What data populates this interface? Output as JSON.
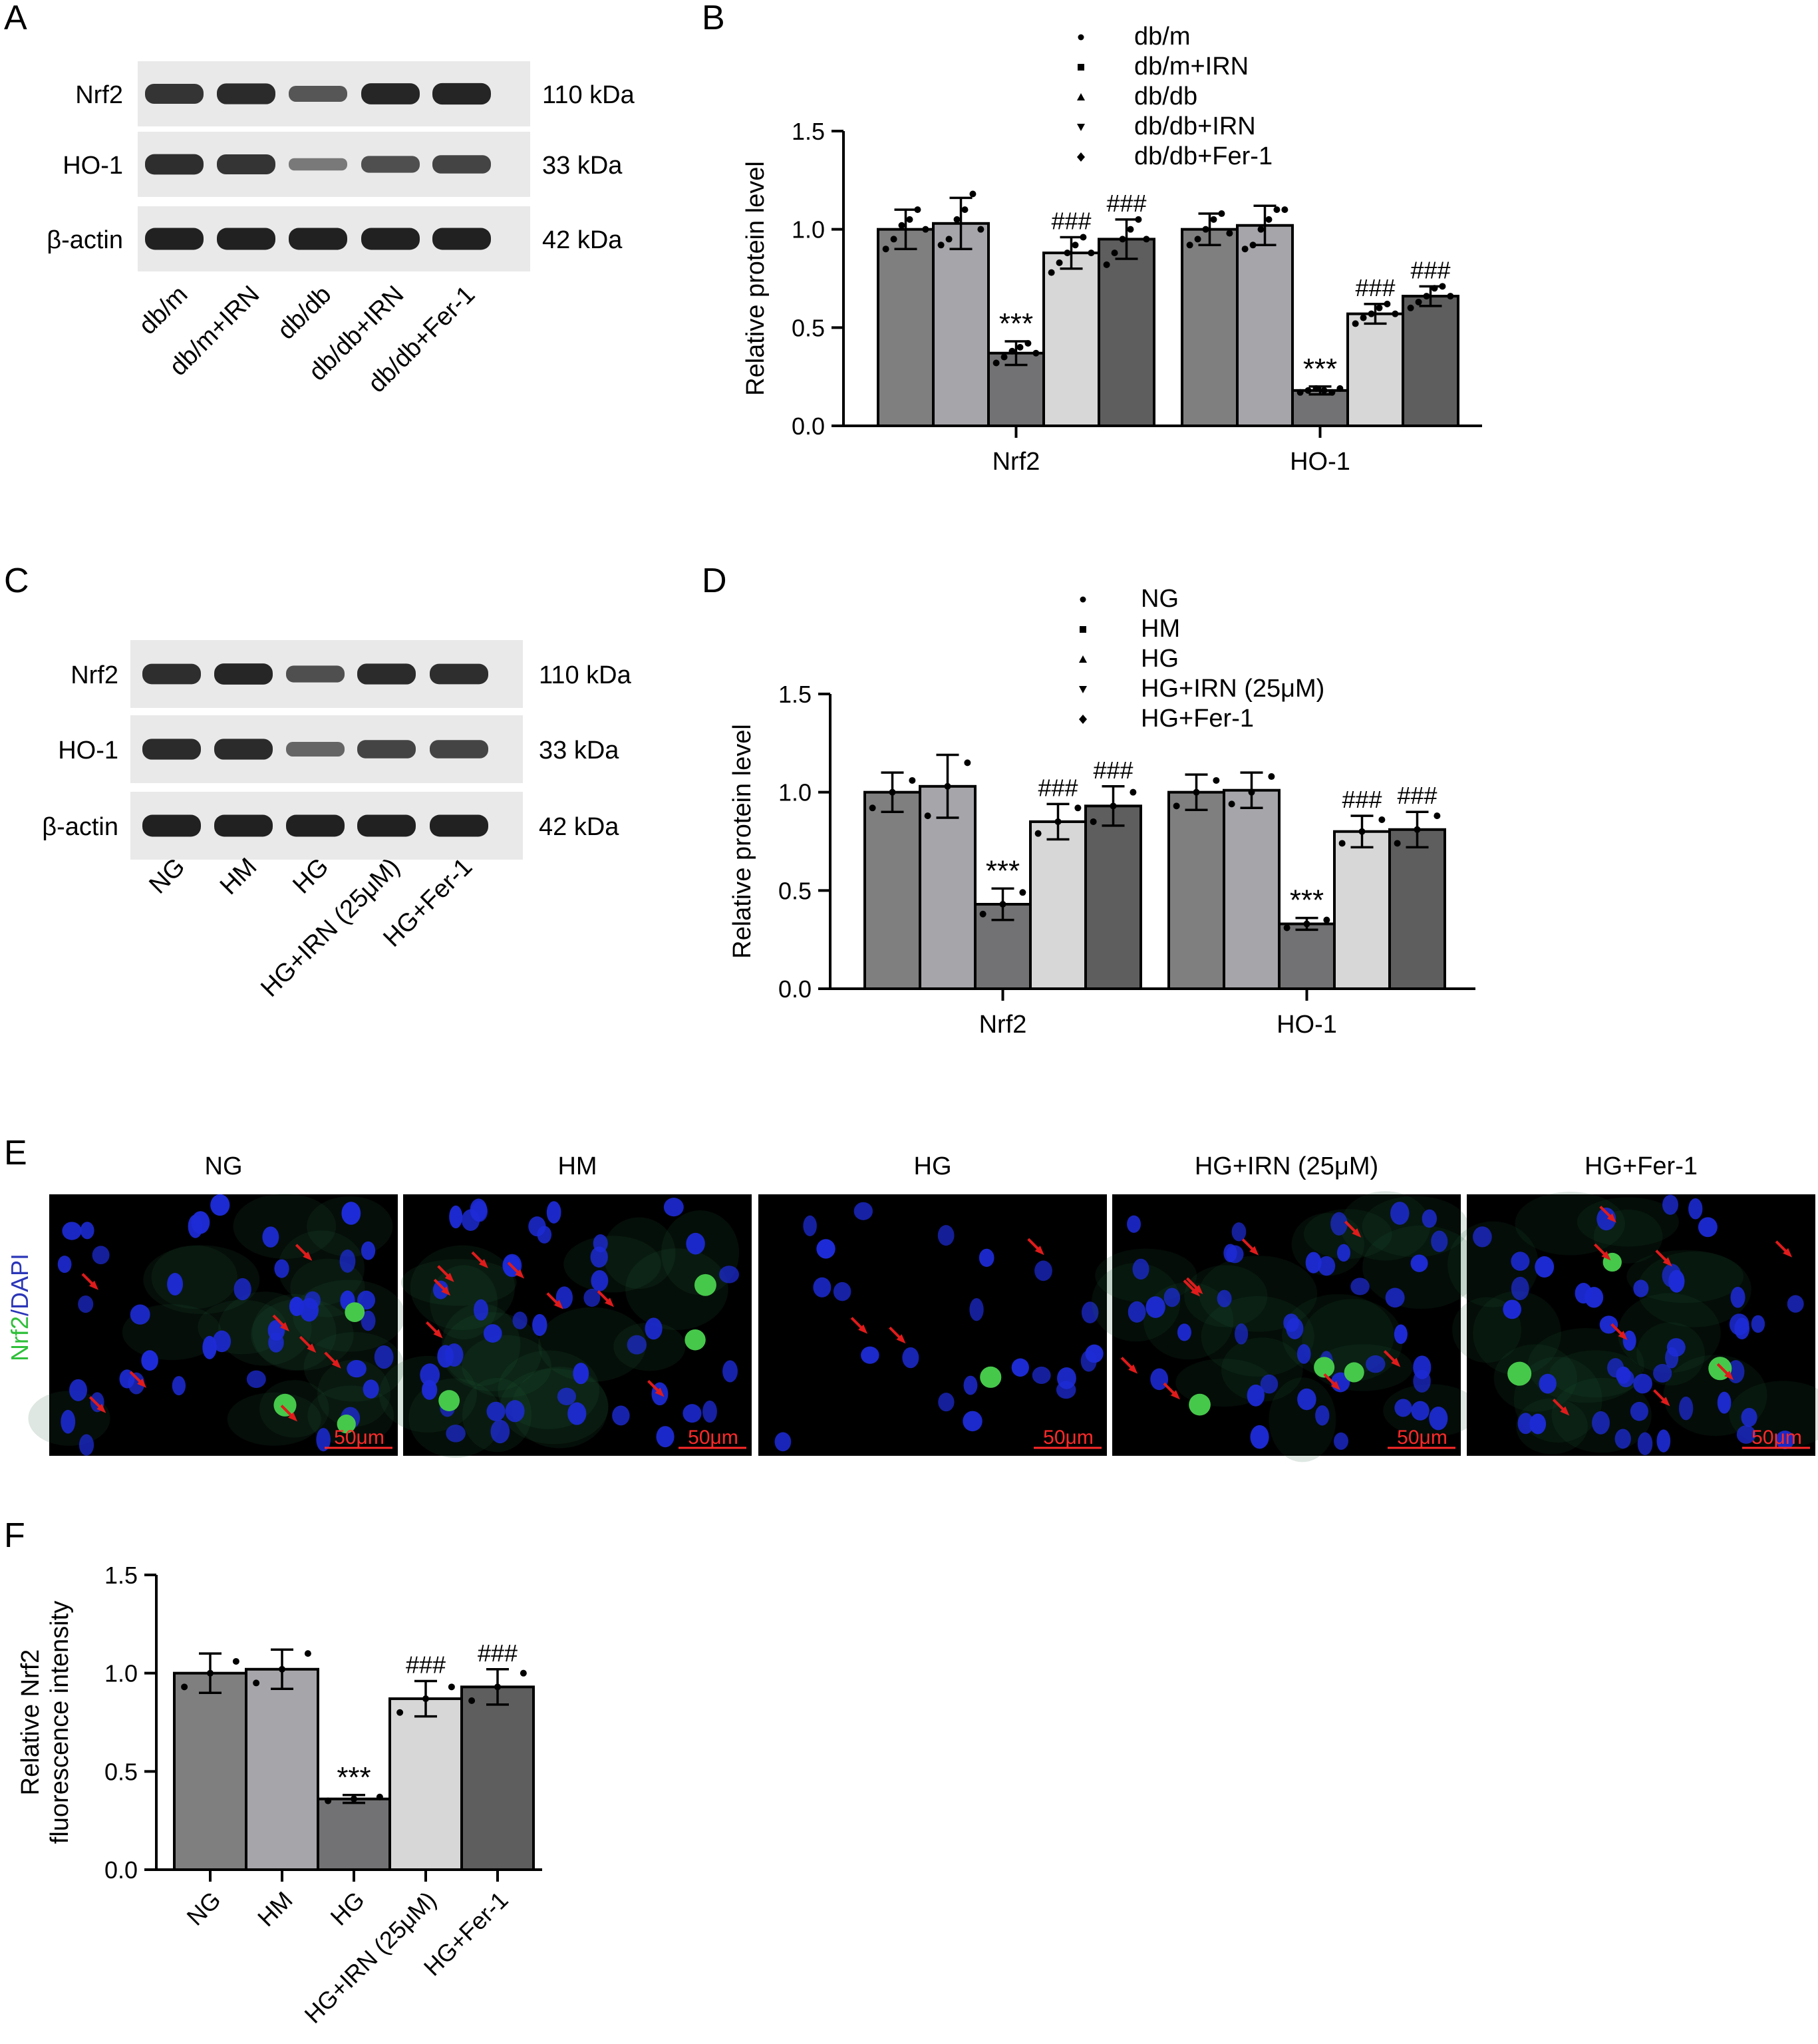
{
  "figure": {
    "colors": {
      "bar_series": [
        "#7f7f80",
        "#a5a5aa",
        "#727274",
        "#d7d7d7",
        "#5e5e5e"
      ],
      "blot_band": "#1a1a1a",
      "blot_bg": "#e9e9e9",
      "if_nucleus": "#1d2bd6",
      "if_green": "#46c84b",
      "if_arrow": "#e01b1b",
      "scale_bar": "#ff2a2a"
    },
    "panels": {
      "A": {
        "label": "A",
        "rows": [
          {
            "protein": "Nrf2",
            "size": "110 kDa",
            "intensity": [
              0.82,
              0.88,
              0.55,
              0.9,
              0.92
            ]
          },
          {
            "protein": "HO-1",
            "size": "33 kDa",
            "intensity": [
              0.85,
              0.82,
              0.3,
              0.6,
              0.7
            ]
          },
          {
            "protein": "β-actin",
            "size": "42 kDa",
            "intensity": [
              0.95,
              0.95,
              0.95,
              0.95,
              0.95
            ]
          }
        ],
        "lanes": [
          "db/m",
          "db/m+IRN",
          "db/db",
          "db/db+IRN",
          "db/db+Fer-1"
        ]
      },
      "C": {
        "label": "C",
        "rows": [
          {
            "protein": "Nrf2",
            "size": "110 kDa",
            "intensity": [
              0.85,
              0.9,
              0.6,
              0.88,
              0.85
            ]
          },
          {
            "protein": "HO-1",
            "size": "33 kDa",
            "intensity": [
              0.88,
              0.88,
              0.45,
              0.7,
              0.7
            ]
          },
          {
            "protein": "β-actin",
            "size": "42 kDa",
            "intensity": [
              0.95,
              0.95,
              0.95,
              0.95,
              0.95
            ]
          }
        ],
        "lanes": [
          "NG",
          "HM",
          "HG",
          "HG+IRN (25μM)",
          "HG+Fer-1"
        ]
      },
      "E": {
        "label": "E",
        "y_label": [
          "Nrf2",
          "/DAPI"
        ],
        "scale_text": "50μm",
        "images": [
          {
            "title": "NG",
            "green": 0.6,
            "nuclei": 40
          },
          {
            "title": "HM",
            "green": 0.65,
            "nuclei": 42
          },
          {
            "title": "HG",
            "green": 0.1,
            "nuclei": 22
          },
          {
            "title": "HG+IRN (25μM)",
            "green": 0.55,
            "nuclei": 40
          },
          {
            "title": "HG+Fer-1",
            "green": 0.55,
            "nuclei": 42
          }
        ]
      }
    }
  },
  "chart_data": [
    {
      "panel": "B",
      "type": "bar",
      "ylabel": "Relative protein level",
      "ylim": [
        0,
        1.5
      ],
      "yticks": [
        "0.0",
        "0.5",
        "1.0",
        "1.5"
      ],
      "categories": [
        "Nrf2",
        "HO-1"
      ],
      "legend_position": "top-center",
      "series": [
        {
          "name": "db/m",
          "values": [
            1.0,
            1.0
          ],
          "errors": [
            0.1,
            0.08
          ],
          "marks": [
            "",
            ""
          ],
          "points": [
            [
              0.9,
              0.95,
              1.02,
              1.05,
              1.1,
              1.0
            ],
            [
              0.92,
              0.95,
              1.0,
              1.05,
              1.08,
              0.98
            ]
          ]
        },
        {
          "name": "db/m+IRN",
          "values": [
            1.03,
            1.02
          ],
          "errors": [
            0.13,
            0.1
          ],
          "marks": [
            "",
            ""
          ],
          "points": [
            [
              0.92,
              0.95,
              1.05,
              1.1,
              1.18,
              1.0
            ],
            [
              0.9,
              0.92,
              1.0,
              1.05,
              1.1,
              1.1
            ]
          ]
        },
        {
          "name": "db/db",
          "values": [
            0.37,
            0.18
          ],
          "errors": [
            0.06,
            0.02
          ],
          "marks": [
            "***",
            "***"
          ],
          "points": [
            [
              0.32,
              0.35,
              0.38,
              0.4,
              0.42,
              0.37
            ],
            [
              0.17,
              0.18,
              0.19,
              0.18,
              0.17,
              0.19
            ]
          ]
        },
        {
          "name": "db/db+IRN",
          "values": [
            0.88,
            0.57
          ],
          "errors": [
            0.08,
            0.05
          ],
          "marks": [
            "###",
            "###"
          ],
          "points": [
            [
              0.78,
              0.83,
              0.88,
              0.92,
              0.96,
              0.88
            ],
            [
              0.52,
              0.55,
              0.57,
              0.6,
              0.62,
              0.57
            ]
          ]
        },
        {
          "name": "db/db+Fer-1",
          "values": [
            0.95,
            0.66
          ],
          "errors": [
            0.1,
            0.05
          ],
          "marks": [
            "###",
            "###"
          ],
          "points": [
            [
              0.82,
              0.88,
              0.95,
              1.0,
              1.05,
              0.95
            ],
            [
              0.6,
              0.63,
              0.66,
              0.7,
              0.71,
              0.66
            ]
          ]
        }
      ]
    },
    {
      "panel": "D",
      "type": "bar",
      "ylabel": "Relative protein level",
      "ylim": [
        0,
        1.5
      ],
      "yticks": [
        "0.0",
        "0.5",
        "1.0",
        "1.5"
      ],
      "categories": [
        "Nrf2",
        "HO-1"
      ],
      "legend_position": "top-center",
      "series": [
        {
          "name": "NG",
          "values": [
            1.0,
            1.0
          ],
          "errors": [
            0.1,
            0.09
          ],
          "marks": [
            "",
            ""
          ],
          "points": [
            [
              0.92,
              1.0,
              1.06
            ],
            [
              0.93,
              1.0,
              1.06
            ]
          ]
        },
        {
          "name": "HM",
          "values": [
            1.03,
            1.01
          ],
          "errors": [
            0.16,
            0.09
          ],
          "marks": [
            "",
            ""
          ],
          "points": [
            [
              0.88,
              1.03,
              1.15
            ],
            [
              0.94,
              1.0,
              1.08
            ]
          ]
        },
        {
          "name": "HG",
          "values": [
            0.43,
            0.33
          ],
          "errors": [
            0.08,
            0.03
          ],
          "marks": [
            "***",
            "***"
          ],
          "points": [
            [
              0.38,
              0.43,
              0.49
            ],
            [
              0.31,
              0.33,
              0.35
            ]
          ]
        },
        {
          "name": "HG+IRN (25μM)",
          "values": [
            0.85,
            0.8
          ],
          "errors": [
            0.09,
            0.08
          ],
          "marks": [
            "###",
            "###"
          ],
          "points": [
            [
              0.79,
              0.85,
              0.92
            ],
            [
              0.74,
              0.8,
              0.86
            ]
          ]
        },
        {
          "name": "HG+Fer-1",
          "values": [
            0.93,
            0.81
          ],
          "errors": [
            0.1,
            0.09
          ],
          "marks": [
            "###",
            "###"
          ],
          "points": [
            [
              0.85,
              0.93,
              1.0
            ],
            [
              0.74,
              0.81,
              0.88
            ]
          ]
        }
      ]
    },
    {
      "panel": "F",
      "type": "bar",
      "ylabel": [
        "Relative Nrf2",
        "fluorescence intensity"
      ],
      "ylim": [
        0,
        1.5
      ],
      "yticks": [
        "0.0",
        "0.5",
        "1.0",
        "1.5"
      ],
      "categories": [
        "NG",
        "HM",
        "HG",
        "HG+IRN (25μM)",
        "HG+Fer-1"
      ],
      "values": [
        1.0,
        1.02,
        0.36,
        0.87,
        0.93
      ],
      "errors": [
        0.1,
        0.1,
        0.02,
        0.09,
        0.09
      ],
      "marks": [
        "",
        "",
        "***",
        "###",
        "###"
      ],
      "points": [
        [
          0.93,
          1.0,
          1.06
        ],
        [
          0.95,
          1.02,
          1.1
        ],
        [
          0.35,
          0.36,
          0.37
        ],
        [
          0.8,
          0.87,
          0.93
        ],
        [
          0.86,
          0.93,
          1.0
        ]
      ]
    }
  ]
}
